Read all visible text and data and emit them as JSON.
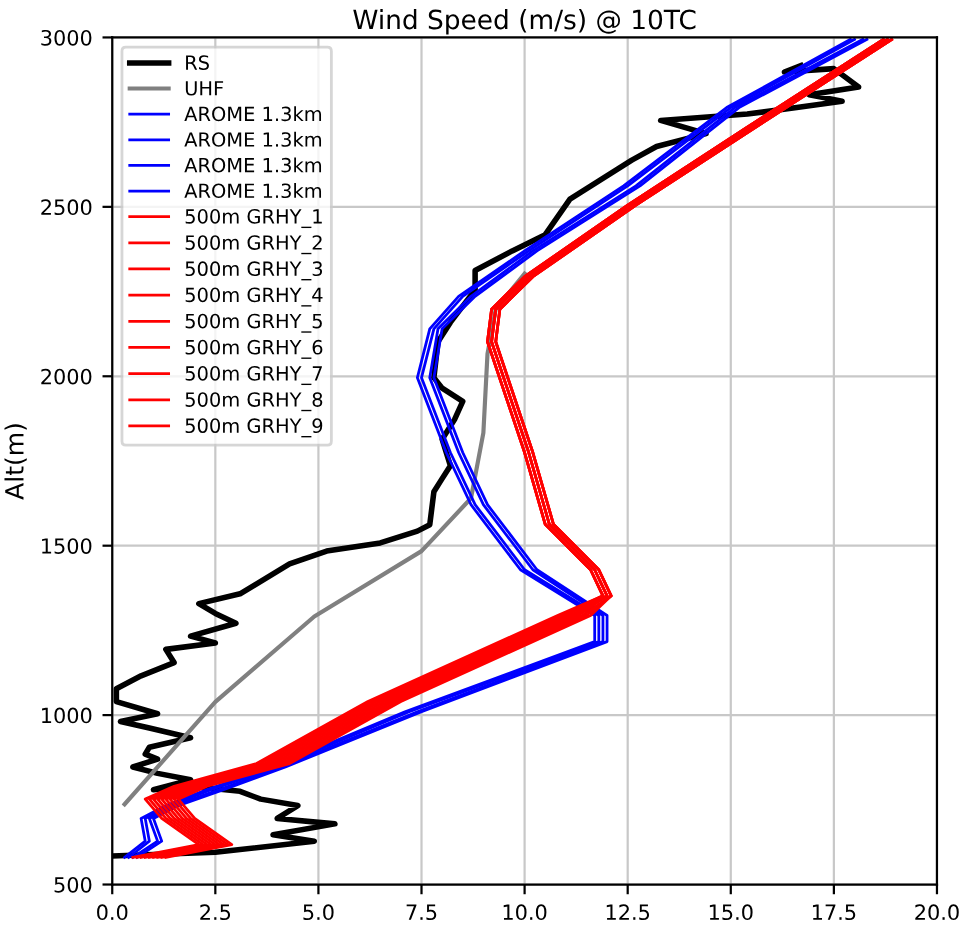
{
  "chart_data": {
    "type": "line",
    "title": "Wind Speed (m/s) @ 10TC",
    "ylabel": "Alt(m)",
    "xlim": [
      0,
      20
    ],
    "ylim": [
      500,
      3000
    ],
    "xticks": [
      {
        "value": 0,
        "label": "0.0"
      },
      {
        "value": 2.5,
        "label": "2.5"
      },
      {
        "value": 5,
        "label": "5.0"
      },
      {
        "value": 7.5,
        "label": "7.5"
      },
      {
        "value": 10,
        "label": "10.0"
      },
      {
        "value": 12.5,
        "label": "12.5"
      },
      {
        "value": 15,
        "label": "15.0"
      },
      {
        "value": 17.5,
        "label": "17.5"
      },
      {
        "value": 20,
        "label": "20.0"
      }
    ],
    "yticks": [
      500,
      1000,
      1500,
      2000,
      2500,
      3000
    ],
    "grid": true,
    "legend": "top left",
    "series": [
      {
        "name": "RS",
        "color": "#000000",
        "x": [
          0,
          2.5,
          4.9,
          3.9,
          5.4,
          4.0,
          4.5,
          3.6,
          3.1,
          1.9,
          1.0,
          1.9,
          1.1,
          0.5,
          1.1,
          0.8,
          0.9,
          1.9,
          0.9,
          0.2,
          1.1,
          0.1,
          0.1,
          0.7,
          1.5,
          1.3,
          2.5,
          1.9,
          3.0,
          2.5,
          2.1,
          3.1,
          4.3,
          5.2,
          6.5,
          7.4,
          7.7,
          7.8,
          8.0,
          8.2,
          8.0,
          8.3,
          8.5,
          8.0,
          7.8,
          7.9,
          8.2,
          8.8,
          8.8,
          9.7,
          10.5,
          11.1,
          12.6,
          13.2,
          14.4,
          13.3,
          15.4,
          16.6,
          17.7,
          16.9,
          18.1,
          17.5,
          16.3,
          16.7
        ],
        "values": [
          584,
          595,
          628,
          647,
          679,
          695,
          733,
          752,
          775,
          790,
          780,
          809,
          828,
          847,
          870,
          885,
          905,
          933,
          962,
          981,
          1004,
          1040,
          1078,
          1116,
          1155,
          1194,
          1213,
          1233,
          1271,
          1300,
          1329,
          1358,
          1446,
          1484,
          1508,
          1543,
          1562,
          1659,
          1698,
          1736,
          1814,
          1872,
          1926,
          1965,
          1996,
          2102,
          2159,
          2255,
          2312,
          2370,
          2418,
          2523,
          2638,
          2678,
          2716,
          2755,
          2774,
          2793,
          2812,
          2831,
          2854,
          2908,
          2898,
          2917
        ]
      },
      {
        "name": "UHF",
        "color": "#808080",
        "x": [
          0.3,
          2.5,
          4.9,
          7.5,
          8.7,
          9.0,
          9.1,
          9.3,
          10.0
        ],
        "values": [
          737,
          1039,
          1291,
          1484,
          1640,
          1833,
          2066,
          2198,
          2303
        ]
      },
      {
        "name": "AROME 1.3km",
        "color": "#0000ff",
        "x": [
          0.3,
          0.8,
          0.7,
          1.3,
          2.3,
          3.9,
          7.1,
          11.7,
          11.7,
          9.9,
          8.7,
          8.1,
          7.4,
          7.7,
          8.4,
          10.0,
          12.4,
          14.9,
          17.9
        ],
        "values": [
          580,
          628,
          695,
          733,
          780,
          847,
          1010,
          1217,
          1294,
          1429,
          1621,
          1775,
          1996,
          2140,
          2236,
          2370,
          2562,
          2793,
          2994
        ]
      },
      {
        "name": "AROME 1.3km",
        "color": "#0000ff",
        "x": [
          0.4,
          0.9,
          0.8,
          1.4,
          2.4,
          4.0,
          7.2,
          11.8,
          11.8,
          10.0,
          8.8,
          8.2,
          7.5,
          7.8,
          8.5,
          10.1,
          12.5,
          15.0,
          18.0
        ],
        "values": [
          580,
          628,
          695,
          733,
          780,
          847,
          1010,
          1217,
          1294,
          1429,
          1621,
          1775,
          1996,
          2140,
          2236,
          2370,
          2562,
          2793,
          2994
        ]
      },
      {
        "name": "AROME 1.3km",
        "color": "#0000ff",
        "x": [
          0.5,
          1.1,
          0.9,
          1.5,
          2.6,
          4.1,
          7.4,
          11.9,
          11.9,
          10.2,
          9.0,
          8.4,
          7.7,
          7.9,
          8.7,
          10.2,
          12.7,
          15.1,
          18.2
        ],
        "values": [
          580,
          628,
          695,
          733,
          780,
          847,
          1010,
          1217,
          1294,
          1429,
          1621,
          1775,
          1996,
          2140,
          2236,
          2370,
          2562,
          2793,
          2994
        ]
      },
      {
        "name": "AROME 1.3km",
        "color": "#0000ff",
        "x": [
          0.6,
          1.2,
          1.0,
          1.6,
          2.7,
          4.2,
          7.5,
          12.0,
          12.0,
          10.3,
          9.1,
          8.5,
          7.8,
          8.0,
          8.8,
          10.3,
          12.8,
          15.2,
          18.3
        ],
        "values": [
          580,
          628,
          695,
          733,
          780,
          847,
          1010,
          1217,
          1294,
          1429,
          1621,
          1775,
          1996,
          2140,
          2236,
          2370,
          2562,
          2793,
          2994
        ]
      },
      {
        "name": "500m GRHY_1",
        "color": "#ff0000",
        "x": [
          0.5,
          2.1,
          1.2,
          0.8,
          1.5,
          3.5,
          6.2,
          10.8,
          11.9,
          11.6,
          10.5,
          10.0,
          9.1,
          9.2,
          10.0,
          12.5,
          15.4,
          18.7
        ],
        "values": [
          580,
          618,
          695,
          752,
          790,
          857,
          1040,
          1294,
          1352,
          1429,
          1563,
          1775,
          2102,
          2198,
          2294,
          2505,
          2735,
          2994
        ]
      },
      {
        "name": "500m GRHY_2",
        "color": "#ff0000",
        "x": [
          0.6,
          2.2,
          1.3,
          0.9,
          1.6,
          3.6,
          6.3,
          10.9,
          11.9,
          11.6,
          10.5,
          10.0,
          9.1,
          9.2,
          10.0,
          12.5,
          15.4,
          18.7
        ],
        "values": [
          580,
          618,
          695,
          752,
          790,
          857,
          1040,
          1294,
          1352,
          1429,
          1563,
          1775,
          2102,
          2198,
          2294,
          2505,
          2735,
          2994
        ]
      },
      {
        "name": "500m GRHY_3",
        "color": "#ff0000",
        "x": [
          0.7,
          2.3,
          1.4,
          1.0,
          1.7,
          3.7,
          6.4,
          11.0,
          11.9,
          11.6,
          10.5,
          10.0,
          9.1,
          9.2,
          10.0,
          12.5,
          15.4,
          18.7
        ],
        "values": [
          580,
          618,
          695,
          752,
          790,
          857,
          1040,
          1294,
          1352,
          1429,
          1563,
          1775,
          2102,
          2198,
          2294,
          2505,
          2735,
          2994
        ]
      },
      {
        "name": "500m GRHY_4",
        "color": "#ff0000",
        "x": [
          0.8,
          2.4,
          1.5,
          1.1,
          1.8,
          3.8,
          6.5,
          11.1,
          12.0,
          11.7,
          10.6,
          10.1,
          9.2,
          9.3,
          10.1,
          12.6,
          15.5,
          18.8
        ],
        "values": [
          580,
          618,
          695,
          752,
          790,
          857,
          1040,
          1294,
          1352,
          1429,
          1563,
          1775,
          2102,
          2198,
          2294,
          2505,
          2735,
          2994
        ]
      },
      {
        "name": "500m GRHY_5",
        "color": "#ff0000",
        "x": [
          0.9,
          2.5,
          1.6,
          1.2,
          1.9,
          3.9,
          6.6,
          11.2,
          12.0,
          11.7,
          10.6,
          10.1,
          9.2,
          9.3,
          10.1,
          12.6,
          15.5,
          18.8
        ],
        "values": [
          580,
          618,
          695,
          752,
          790,
          857,
          1040,
          1294,
          1352,
          1429,
          1563,
          1775,
          2102,
          2198,
          2294,
          2505,
          2735,
          2994
        ]
      },
      {
        "name": "500m GRHY_6",
        "color": "#ff0000",
        "x": [
          1.0,
          2.6,
          1.7,
          1.3,
          2.0,
          4.0,
          6.7,
          11.3,
          12.0,
          11.7,
          10.6,
          10.1,
          9.2,
          9.3,
          10.1,
          12.6,
          15.5,
          18.8
        ],
        "values": [
          580,
          618,
          695,
          752,
          790,
          857,
          1040,
          1294,
          1352,
          1429,
          1563,
          1775,
          2102,
          2198,
          2294,
          2505,
          2735,
          2994
        ]
      },
      {
        "name": "500m GRHY_7",
        "color": "#ff0000",
        "x": [
          1.1,
          2.7,
          1.8,
          1.4,
          2.1,
          4.1,
          6.8,
          11.4,
          12.1,
          11.8,
          10.7,
          10.2,
          9.3,
          9.4,
          10.2,
          12.7,
          15.6,
          18.9
        ],
        "values": [
          580,
          618,
          695,
          752,
          790,
          857,
          1040,
          1294,
          1352,
          1429,
          1563,
          1775,
          2102,
          2198,
          2294,
          2505,
          2735,
          2994
        ]
      },
      {
        "name": "500m GRHY_8",
        "color": "#ff0000",
        "x": [
          1.2,
          2.8,
          1.9,
          1.5,
          2.2,
          4.2,
          6.9,
          11.5,
          12.1,
          11.8,
          10.7,
          10.2,
          9.3,
          9.4,
          10.2,
          12.7,
          15.6,
          18.9
        ],
        "values": [
          580,
          618,
          695,
          752,
          790,
          857,
          1040,
          1294,
          1352,
          1429,
          1563,
          1775,
          2102,
          2198,
          2294,
          2505,
          2735,
          2994
        ]
      },
      {
        "name": "500m GRHY_9",
        "color": "#ff0000",
        "x": [
          1.3,
          2.9,
          2.0,
          1.6,
          2.3,
          4.3,
          7.0,
          11.6,
          12.1,
          11.8,
          10.7,
          10.2,
          9.3,
          9.4,
          10.2,
          12.7,
          15.6,
          18.9
        ],
        "values": [
          580,
          618,
          695,
          752,
          790,
          857,
          1040,
          1294,
          1352,
          1429,
          1563,
          1775,
          2102,
          2198,
          2294,
          2505,
          2735,
          2994
        ]
      }
    ]
  }
}
